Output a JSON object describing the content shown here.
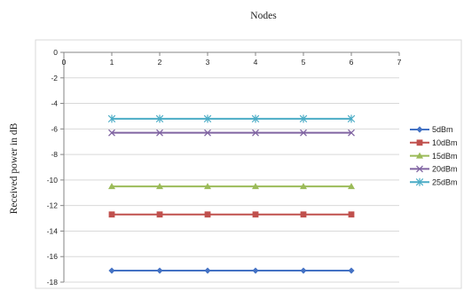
{
  "chart_data": {
    "type": "line",
    "title": "",
    "xlabel": "Nodes",
    "ylabel": "Received power in dB",
    "x": [
      1,
      2,
      3,
      4,
      5,
      6
    ],
    "x_ticks": [
      "0",
      "1",
      "2",
      "3",
      "4",
      "5",
      "6",
      "7"
    ],
    "y_ticks": [
      "0",
      "-2",
      "-4",
      "-6",
      "-8",
      "-10",
      "-12",
      "-14",
      "-16",
      "-18"
    ],
    "xlim": [
      0,
      7
    ],
    "ylim": [
      -18,
      0
    ],
    "x_axis_position": "top",
    "grid": "horizontal",
    "legend_position": "right",
    "series": [
      {
        "name": "5dBm",
        "color": "#4472C4",
        "marker": "diamond",
        "values": [
          -17.1,
          -17.1,
          -17.1,
          -17.1,
          -17.1,
          -17.1
        ]
      },
      {
        "name": "10dBm",
        "color": "#C0504D",
        "marker": "square",
        "values": [
          -12.7,
          -12.7,
          -12.7,
          -12.7,
          -12.7,
          -12.7
        ]
      },
      {
        "name": "15dBm",
        "color": "#9BBB59",
        "marker": "triangle",
        "values": [
          -10.5,
          -10.5,
          -10.5,
          -10.5,
          -10.5,
          -10.5
        ]
      },
      {
        "name": "20dBm",
        "color": "#8064A2",
        "marker": "x",
        "values": [
          -6.3,
          -6.3,
          -6.3,
          -6.3,
          -6.3,
          -6.3
        ]
      },
      {
        "name": "25dBm",
        "color": "#4BACC6",
        "marker": "star",
        "values": [
          -5.2,
          -5.2,
          -5.2,
          -5.2,
          -5.2,
          -5.2
        ]
      }
    ]
  }
}
